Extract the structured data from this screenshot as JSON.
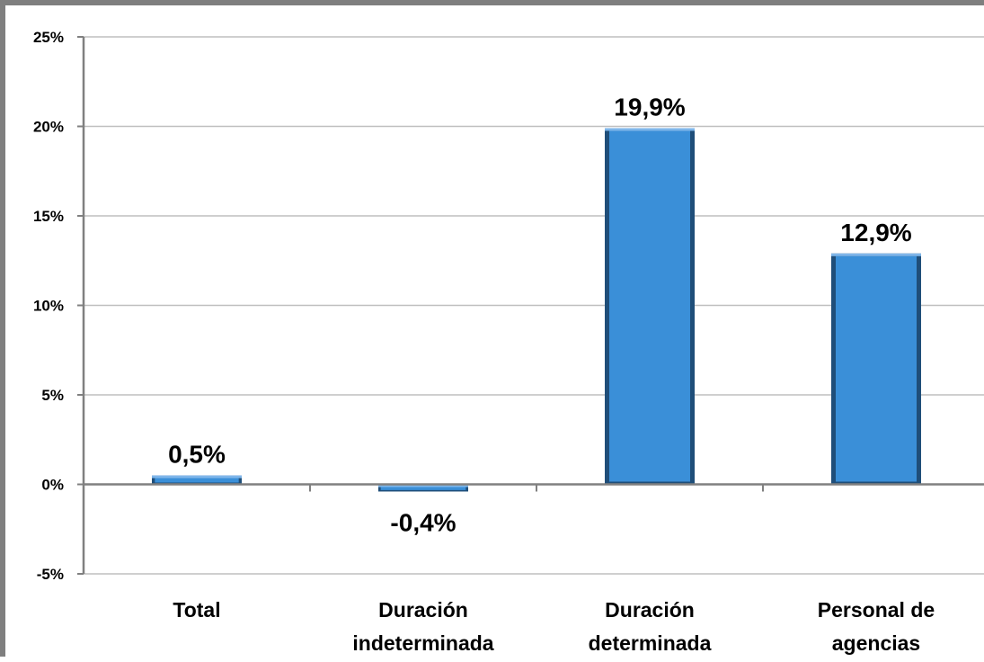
{
  "chart_data": {
    "type": "bar",
    "title": "",
    "xlabel": "",
    "ylabel": "",
    "categories": [
      [
        "Total"
      ],
      [
        "Duración",
        "indeterminada"
      ],
      [
        "Duración",
        "determinada"
      ],
      [
        "Personal de",
        "agencias"
      ]
    ],
    "values": [
      0.5,
      -0.4,
      19.9,
      12.9
    ],
    "data_labels": [
      "0,5%",
      "-0,4%",
      "19,9%",
      "12,9%"
    ],
    "ylim": [
      -5,
      25
    ],
    "yticks": [
      -5,
      0,
      5,
      10,
      15,
      20,
      25
    ],
    "ytick_labels": [
      "-5%",
      "0%",
      "5%",
      "10%",
      "15%",
      "20%",
      "25%"
    ],
    "grid": true,
    "legend": "none",
    "colors": {
      "bar_face": "#3a8fd8",
      "bar_edge": "#1f4e79",
      "grid": "#bfbfbf",
      "axis": "#808080"
    }
  }
}
